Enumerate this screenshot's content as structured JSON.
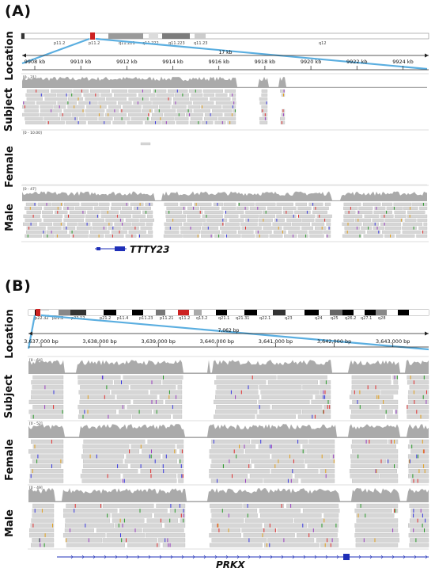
{
  "panel_a": {
    "letter": "(A)",
    "tracks": [
      "Location",
      "Subject",
      "Female",
      "Male"
    ],
    "ideogram_bands": [
      "p11.2",
      "p11.2",
      "q11.221",
      "q11.222",
      "q11.223",
      "q11.23",
      "q12"
    ],
    "span_label": "17 kb",
    "coords": [
      "9908 kb",
      "9910 kb",
      "9912 kb",
      "9914 kb",
      "9916 kb",
      "9918 kb",
      "9920 kb",
      "9922 kb",
      "9924 kb"
    ],
    "ranges": [
      "[0 - 31]",
      "[0 - 10.00]",
      "[0 - 47]"
    ],
    "gene": "TTTY23"
  },
  "panel_b": {
    "letter": "(B)",
    "tracks": [
      "Location",
      "Subject",
      "Female",
      "Male"
    ],
    "ideogram_bands": [
      "p22.32",
      "p22.2",
      "p22.12",
      "p21.2",
      "p11.4",
      "p11.23",
      "p11.21",
      "q11.2",
      "q13.2",
      "q21.1",
      "q21.31",
      "q22.1",
      "q23",
      "q24",
      "q25",
      "q26.2",
      "q27.1",
      "q28"
    ],
    "span_label": "7,062 bp",
    "coords": [
      "3,637,000 bp",
      "3,638,000 bp",
      "3,639,000 bp",
      "3,640,000 bp",
      "3,641,000 bp",
      "3,642,000 bp",
      "3,643,000 bp"
    ],
    "ranges": [
      "[0 - 64]",
      "[0 - 52]",
      "[0 - 49]"
    ],
    "gene": "PRKX"
  },
  "colors": {
    "zoom_line": "#5aaee0",
    "coverage": "#aaaaaa",
    "read": "#d6d6d6",
    "read_border": "#b4b4b4",
    "gene": "#1f2fb8",
    "centromere": "#cc2222"
  }
}
